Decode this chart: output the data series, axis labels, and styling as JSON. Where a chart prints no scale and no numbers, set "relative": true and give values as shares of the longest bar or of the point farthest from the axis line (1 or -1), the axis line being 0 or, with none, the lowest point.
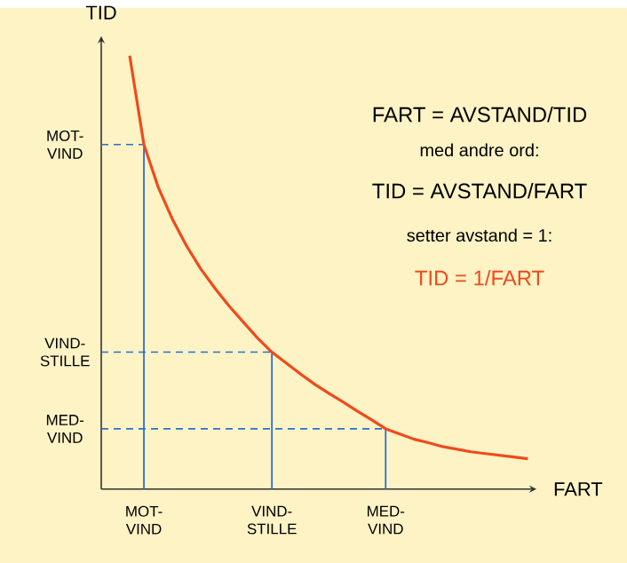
{
  "chart_data": {
    "type": "line",
    "xlabel": "FART",
    "ylabel": "TID",
    "relative": true,
    "categories": [
      null,
      null,
      null,
      "MOT-VIND",
      null,
      null,
      null,
      null,
      null,
      null,
      null,
      null,
      "VIND-STILLE",
      null,
      null,
      null,
      null,
      null,
      null,
      null,
      "MED-VIND",
      null,
      null,
      null,
      null,
      null,
      null,
      null,
      null,
      null,
      null
    ],
    "series": [
      {
        "color": "#f04a1c",
        "values": [
          null,
          null,
          1,
          0.795,
          0.697,
          0.623,
          0.561,
          0.508,
          0.463,
          0.422,
          0.385,
          0.348,
          0.316,
          0.291,
          0.266,
          0.242,
          0.221,
          0.201,
          0.18,
          0.16,
          0.139,
          0.127,
          0.115,
          0.107,
          0.098,
          0.092,
          0.086,
          0.082,
          0.078,
          0.074,
          0.07
        ]
      },
      {
        "color": "#2a6fd0",
        "line_style": "dashed",
        "values": [
          0.795,
          0.795,
          0.795,
          0.795,
          null,
          null,
          null,
          null,
          null,
          null,
          null,
          null,
          null,
          null,
          null,
          null,
          null,
          null,
          null,
          null,
          null,
          null,
          null,
          null,
          null,
          null,
          null,
          null,
          null,
          null,
          null
        ]
      },
      {
        "color": "#2a6fd0",
        "line_style": "dashed",
        "values": [
          0.316,
          0.316,
          0.316,
          0.316,
          0.316,
          0.316,
          0.316,
          0.316,
          0.316,
          0.316,
          0.316,
          0.316,
          0.316,
          null,
          null,
          null,
          null,
          null,
          null,
          null,
          null,
          null,
          null,
          null,
          null,
          null,
          null,
          null,
          null,
          null,
          null
        ]
      },
      {
        "color": "#2a6fd0",
        "line_style": "dashed",
        "values": [
          0.139,
          0.139,
          0.139,
          0.139,
          0.139,
          0.139,
          0.139,
          0.139,
          0.139,
          0.139,
          0.139,
          0.139,
          0.139,
          0.139,
          0.139,
          0.139,
          0.139,
          0.139,
          0.139,
          0.139,
          0.139,
          null,
          null,
          null,
          null,
          null,
          null,
          null,
          null,
          null,
          null
        ]
      },
      {
        "type": "bar",
        "color": "#2a6fd0",
        "values": [
          null,
          null,
          null,
          0.795,
          null,
          null,
          null,
          null,
          null,
          null,
          null,
          null,
          0.316,
          null,
          null,
          null,
          null,
          null,
          null,
          null,
          0.139,
          null,
          null,
          null,
          null,
          null,
          null,
          null,
          null,
          null,
          null
        ]
      }
    ],
    "annotations": [
      "MOT-VIND",
      "VIND-STILLE",
      "MED-VIND",
      "FART = AVSTAND/TID",
      "med andre ord:",
      "TID = AVSTAND/FART",
      "setter avstand = 1:",
      "TID = 1/FART"
    ]
  }
}
